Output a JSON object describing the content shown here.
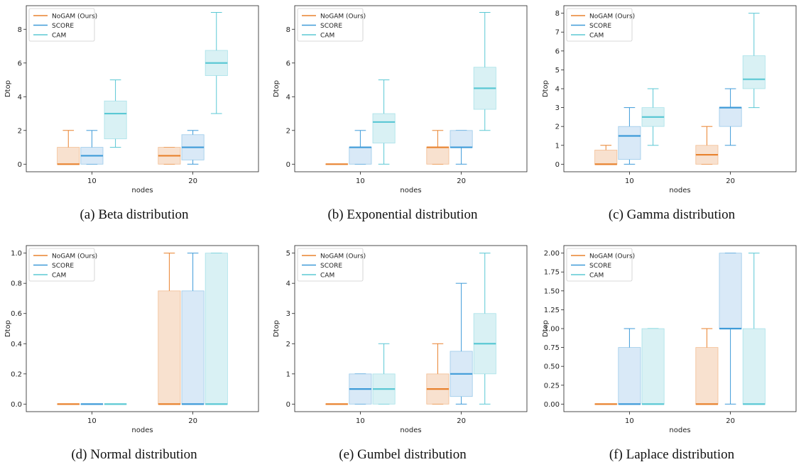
{
  "colors": {
    "nogam": "#e8822e",
    "score": "#3f9bd8",
    "cam": "#5bc8d4",
    "nogam_fill": "#f8e1cf",
    "score_fill": "#d9e9f7",
    "cam_fill": "#d9f1f4"
  },
  "legend": [
    "NoGAM (Ours)",
    "SCORE",
    "CAM"
  ],
  "chart_data": [
    {
      "type": "box",
      "caption": "(a) Beta distribution",
      "xlabel": "nodes",
      "ylabel": "Dtop",
      "categories": [
        "10",
        "20"
      ],
      "ylim": [
        -0.45,
        9.4
      ],
      "yticks": [
        0,
        2,
        4,
        6,
        8
      ],
      "yticklabels": [
        "0",
        "2",
        "4",
        "6",
        "8"
      ],
      "legend_position": "top-left",
      "series": [
        {
          "name": "NoGAM (Ours)",
          "boxes": [
            {
              "min": 0,
              "q1": 0,
              "median": 0,
              "q3": 1,
              "max": 2
            },
            {
              "min": 0,
              "q1": 0,
              "median": 0.5,
              "q3": 1,
              "max": 1
            }
          ]
        },
        {
          "name": "SCORE",
          "boxes": [
            {
              "min": 0,
              "q1": 0,
              "median": 0.5,
              "q3": 1,
              "max": 2
            },
            {
              "min": 0,
              "q1": 0.25,
              "median": 1,
              "q3": 1.75,
              "max": 2
            }
          ]
        },
        {
          "name": "CAM",
          "boxes": [
            {
              "min": 1,
              "q1": 1.5,
              "median": 3,
              "q3": 3.75,
              "max": 5
            },
            {
              "min": 3,
              "q1": 5.25,
              "median": 6,
              "q3": 6.75,
              "max": 9
            }
          ]
        }
      ]
    },
    {
      "type": "box",
      "caption": "(b) Exponential distribution",
      "xlabel": "nodes",
      "ylabel": "Dtop",
      "categories": [
        "10",
        "20"
      ],
      "ylim": [
        -0.45,
        9.4
      ],
      "yticks": [
        0,
        2,
        4,
        6,
        8
      ],
      "yticklabels": [
        "0",
        "2",
        "4",
        "6",
        "8"
      ],
      "legend_position": "top-left",
      "series": [
        {
          "name": "NoGAM (Ours)",
          "boxes": [
            {
              "min": 0,
              "q1": 0,
              "median": 0,
              "q3": 0,
              "max": 0
            },
            {
              "min": 0,
              "q1": 0,
              "median": 1,
              "q3": 1,
              "max": 2
            }
          ]
        },
        {
          "name": "SCORE",
          "boxes": [
            {
              "min": 0,
              "q1": 0,
              "median": 1,
              "q3": 1,
              "max": 2
            },
            {
              "min": 0,
              "q1": 1,
              "median": 1,
              "q3": 2,
              "max": 2
            }
          ]
        },
        {
          "name": "CAM",
          "boxes": [
            {
              "min": 0,
              "q1": 1.25,
              "median": 2.5,
              "q3": 3,
              "max": 5
            },
            {
              "min": 2,
              "q1": 3.25,
              "median": 4.5,
              "q3": 5.75,
              "max": 9
            }
          ]
        }
      ]
    },
    {
      "type": "box",
      "caption": "(c) Gamma distribution",
      "xlabel": "nodes",
      "ylabel": "Dtop",
      "categories": [
        "10",
        "20"
      ],
      "ylim": [
        -0.4,
        8.4
      ],
      "yticks": [
        0,
        1,
        2,
        3,
        4,
        5,
        6,
        7,
        8
      ],
      "yticklabels": [
        "0",
        "1",
        "2",
        "3",
        "4",
        "5",
        "6",
        "7",
        "8"
      ],
      "legend_position": "top-left",
      "series": [
        {
          "name": "NoGAM (Ours)",
          "boxes": [
            {
              "min": 0,
              "q1": 0,
              "median": 0,
              "q3": 0.75,
              "max": 1
            },
            {
              "min": 0,
              "q1": 0,
              "median": 0.5,
              "q3": 1,
              "max": 2
            }
          ]
        },
        {
          "name": "SCORE",
          "boxes": [
            {
              "min": 0,
              "q1": 0.25,
              "median": 1.5,
              "q3": 2,
              "max": 3
            },
            {
              "min": 1,
              "q1": 2,
              "median": 3,
              "q3": 3,
              "max": 4
            }
          ]
        },
        {
          "name": "CAM",
          "boxes": [
            {
              "min": 1,
              "q1": 2,
              "median": 2.5,
              "q3": 3,
              "max": 4
            },
            {
              "min": 3,
              "q1": 4,
              "median": 4.5,
              "q3": 5.75,
              "max": 8
            }
          ]
        }
      ]
    },
    {
      "type": "box",
      "caption": "(d) Normal distribution",
      "xlabel": "nodes",
      "ylabel": "Dtop",
      "categories": [
        "10",
        "20"
      ],
      "ylim": [
        -0.05,
        1.05
      ],
      "yticks": [
        0,
        0.2,
        0.4,
        0.6,
        0.8,
        1.0
      ],
      "yticklabels": [
        "0.0",
        "0.2",
        "0.4",
        "0.6",
        "0.8",
        "1.0"
      ],
      "legend_position": "top-left",
      "series": [
        {
          "name": "NoGAM (Ours)",
          "boxes": [
            {
              "min": 0,
              "q1": 0,
              "median": 0,
              "q3": 0,
              "max": 0
            },
            {
              "min": 0,
              "q1": 0,
              "median": 0,
              "q3": 0.75,
              "max": 1
            }
          ]
        },
        {
          "name": "SCORE",
          "boxes": [
            {
              "min": 0,
              "q1": 0,
              "median": 0,
              "q3": 0,
              "max": 0
            },
            {
              "min": 0,
              "q1": 0,
              "median": 0,
              "q3": 0.75,
              "max": 1
            }
          ]
        },
        {
          "name": "CAM",
          "boxes": [
            {
              "min": 0,
              "q1": 0,
              "median": 0,
              "q3": 0,
              "max": 0
            },
            {
              "min": 0,
              "q1": 0,
              "median": 0,
              "q3": 1,
              "max": 1
            }
          ]
        }
      ]
    },
    {
      "type": "box",
      "caption": "(e) Gumbel distribution",
      "xlabel": "nodes",
      "ylabel": "Dtop",
      "categories": [
        "10",
        "20"
      ],
      "ylim": [
        -0.25,
        5.25
      ],
      "yticks": [
        0,
        1,
        2,
        3,
        4,
        5
      ],
      "yticklabels": [
        "0",
        "1",
        "2",
        "3",
        "4",
        "5"
      ],
      "legend_position": "top-left",
      "series": [
        {
          "name": "NoGAM (Ours)",
          "boxes": [
            {
              "min": 0,
              "q1": 0,
              "median": 0,
              "q3": 0,
              "max": 0
            },
            {
              "min": 0,
              "q1": 0,
              "median": 0.5,
              "q3": 1,
              "max": 2
            }
          ]
        },
        {
          "name": "SCORE",
          "boxes": [
            {
              "min": 0,
              "q1": 0,
              "median": 0.5,
              "q3": 1,
              "max": 1
            },
            {
              "min": 0,
              "q1": 0.25,
              "median": 1,
              "q3": 1.75,
              "max": 4
            }
          ]
        },
        {
          "name": "CAM",
          "boxes": [
            {
              "min": 0,
              "q1": 0,
              "median": 0.5,
              "q3": 1,
              "max": 2
            },
            {
              "min": 0,
              "q1": 1,
              "median": 2,
              "q3": 3,
              "max": 5
            }
          ]
        }
      ]
    },
    {
      "type": "box",
      "caption": "(f) Laplace distribution",
      "xlabel": "nodes",
      "ylabel": "Dtop",
      "categories": [
        "10",
        "20"
      ],
      "ylim": [
        -0.1,
        2.1
      ],
      "yticks": [
        0,
        0.25,
        0.5,
        0.75,
        1.0,
        1.25,
        1.5,
        1.75,
        2.0
      ],
      "yticklabels": [
        "0.00",
        "0.25",
        "0.50",
        "0.75",
        "1.00",
        "1.25",
        "1.50",
        "1.75",
        "2.00"
      ],
      "legend_position": "top-left",
      "series": [
        {
          "name": "NoGAM (Ours)",
          "boxes": [
            {
              "min": 0,
              "q1": 0,
              "median": 0,
              "q3": 0,
              "max": 0
            },
            {
              "min": 0,
              "q1": 0,
              "median": 0,
              "q3": 0.75,
              "max": 1
            }
          ]
        },
        {
          "name": "SCORE",
          "boxes": [
            {
              "min": 0,
              "q1": 0,
              "median": 0,
              "q3": 0.75,
              "max": 1
            },
            {
              "min": 0,
              "q1": 1,
              "median": 1,
              "q3": 2,
              "max": 2
            }
          ]
        },
        {
          "name": "CAM",
          "boxes": [
            {
              "min": 0,
              "q1": 0,
              "median": 0,
              "q3": 1,
              "max": 1
            },
            {
              "min": 0,
              "q1": 0,
              "median": 0,
              "q3": 1,
              "max": 2
            }
          ]
        }
      ]
    }
  ]
}
